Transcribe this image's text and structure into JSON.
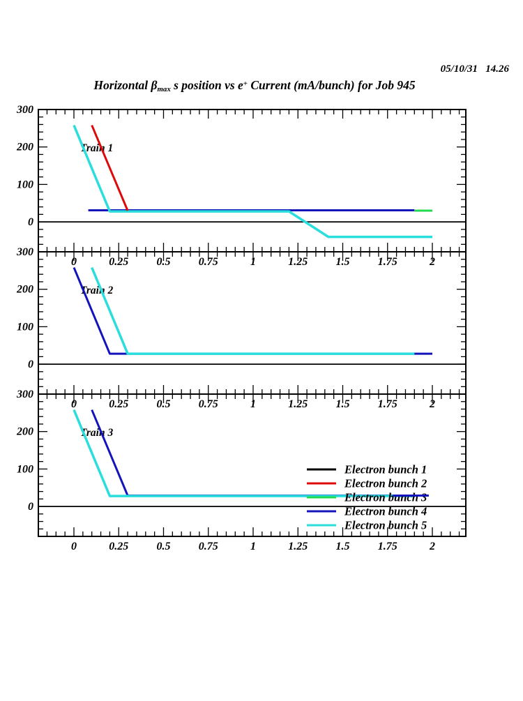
{
  "header": {
    "timestamp": "05/10/31   14.26"
  },
  "colors": {
    "black": "#000000",
    "red": "#dd0a0a",
    "green": "#22d94f",
    "blue": "#1414bb",
    "cyan": "#2adede",
    "frame": "#000000",
    "background": "#ffffff"
  },
  "chart_data": {
    "type": "line",
    "title": {
      "p1": "Horizontal β",
      "sub": "max",
      "p2": " s position vs e",
      "sup": "+",
      "p3": " Current (mA/bunch) for Job 945"
    },
    "x_axis": {
      "range": [
        -0.2,
        2.18
      ],
      "major_tick_values": [
        0,
        0.25,
        0.5,
        0.75,
        1,
        1.25,
        1.5,
        1.75,
        2
      ],
      "major_tick_labels": [
        "0",
        "0.25",
        "0.5",
        "0.75",
        "1",
        "1.25",
        "1.5",
        "1.75",
        "2"
      ],
      "minor_step": 0.05
    },
    "y_axis": {
      "range": [
        -80,
        300
      ],
      "major_tick_values": [
        0,
        100,
        200,
        300
      ],
      "major_tick_labels": [
        "0",
        "100",
        "200",
        "300"
      ],
      "minor_step": 20
    },
    "grid": false,
    "zero_line": true,
    "panels": [
      {
        "name": "Train 1",
        "series": [
          {
            "bunch": "Electron bunch 4",
            "color": "blue",
            "points": [
              [
                0.08,
                31
              ],
              [
                1.9,
                31
              ]
            ]
          },
          {
            "bunch": "Electron bunch 5",
            "color": "cyan",
            "points": [
              [
                0,
                258
              ],
              [
                0.2,
                28
              ],
              [
                1.2,
                28
              ],
              [
                1.42,
                -40
              ],
              [
                2.0,
                -40
              ]
            ]
          },
          {
            "bunch": "Electron bunch 2",
            "color": "red",
            "points": [
              [
                0.1,
                258
              ],
              [
                0.3,
                30
              ]
            ]
          },
          {
            "bunch": "Electron bunch 3",
            "color": "green",
            "points": [
              [
                1.9,
                30
              ],
              [
                2.0,
                30
              ]
            ]
          }
        ]
      },
      {
        "name": "Train 2",
        "series": [
          {
            "bunch": "Electron bunch 4",
            "color": "blue",
            "points": [
              [
                0,
                258
              ],
              [
                0.2,
                28
              ],
              [
                2.0,
                28
              ]
            ]
          },
          {
            "bunch": "Electron bunch 5",
            "color": "cyan",
            "points": [
              [
                0.1,
                258
              ],
              [
                0.3,
                28
              ],
              [
                1.9,
                28
              ]
            ]
          }
        ]
      },
      {
        "name": "Train 3",
        "series": [
          {
            "bunch": "Electron bunch 4",
            "color": "blue",
            "points": [
              [
                0.1,
                258
              ],
              [
                0.3,
                29
              ],
              [
                1.78,
                29
              ]
            ]
          },
          {
            "bunch": "Electron bunch 5",
            "color": "cyan",
            "points": [
              [
                0,
                258
              ],
              [
                0.2,
                28
              ],
              [
                1.9,
                28
              ]
            ]
          }
        ],
        "overlay_series": [
          {
            "bunch": "Electron bunch 4",
            "color": "blue",
            "points": [
              [
                1.78,
                29
              ],
              [
                1.98,
                29
              ]
            ]
          }
        ]
      }
    ],
    "legend": {
      "position": "inside-bottom-right-of-train-3",
      "items": [
        {
          "label": "Electron bunch 1",
          "color": "black"
        },
        {
          "label": "Electron bunch 2",
          "color": "red"
        },
        {
          "label": "Electron bunch 3",
          "color": "green"
        },
        {
          "label": "Electron bunch 4",
          "color": "blue"
        },
        {
          "label": "Electron bunch 5",
          "color": "cyan"
        }
      ]
    }
  }
}
